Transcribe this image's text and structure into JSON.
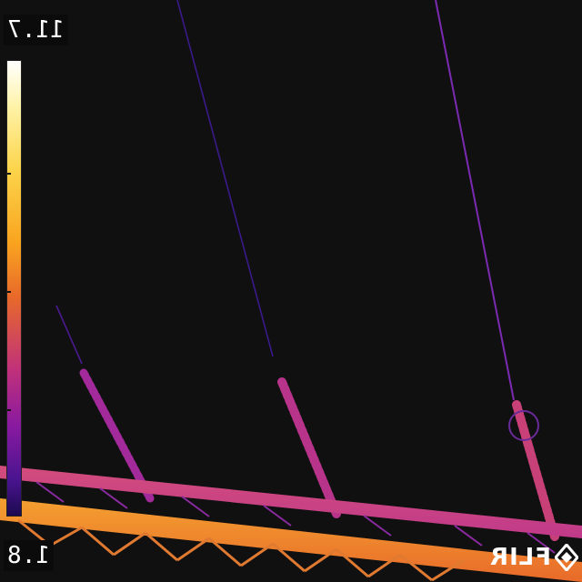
{
  "scale": {
    "max_label": "11.7",
    "min_label": "1.8",
    "palette": [
      "#ffffff",
      "#fcd44a",
      "#f9a41f",
      "#e8692a",
      "#c0317a",
      "#8a1aa0",
      "#4a1490",
      "#1c0a50"
    ]
  },
  "logo": {
    "text": "FLIR"
  },
  "colors": {
    "background": "#111011",
    "hot": "#f9a032",
    "warm": "#e0502e",
    "mid": "#c03a8a",
    "cool": "#7a2ab0",
    "cold": "#3a1a90"
  }
}
